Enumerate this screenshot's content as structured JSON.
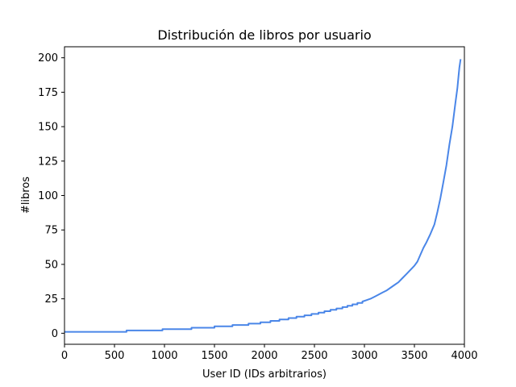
{
  "chart_data": {
    "type": "line",
    "title": "Distribución de libros por usuario",
    "xlabel": "User ID (IDs arbitrarios)",
    "ylabel": "#libros",
    "xlim": [
      0,
      4000
    ],
    "ylim": [
      -8,
      208
    ],
    "xticks": [
      0,
      500,
      1000,
      1500,
      2000,
      2500,
      3000,
      3500,
      4000
    ],
    "yticks": [
      0,
      25,
      50,
      75,
      100,
      125,
      150,
      175,
      200
    ],
    "grid": false,
    "line_color": "#4a86e8",
    "series": [
      {
        "x": [
          0,
          620,
          620,
          980,
          980,
          1270,
          1270,
          1500,
          1500,
          1680,
          1680,
          1840,
          1840,
          1960,
          1960,
          2060,
          2060,
          2150,
          2150,
          2240,
          2240,
          2320,
          2320,
          2400,
          2400,
          2470,
          2470,
          2540,
          2540,
          2600,
          2600,
          2660,
          2660,
          2720,
          2720,
          2780,
          2780,
          2830,
          2830,
          2880,
          2880,
          2930,
          2930,
          2980,
          2980,
          3020,
          3060,
          3100,
          3140,
          3180,
          3220,
          3260,
          3300,
          3340,
          3380,
          3420,
          3460,
          3500,
          3530,
          3560,
          3590,
          3620,
          3660,
          3700,
          3730,
          3760,
          3790,
          3820,
          3850,
          3880,
          3910,
          3930,
          3940,
          3950,
          3962
        ],
        "y": [
          1,
          1,
          2,
          2,
          3,
          3,
          4,
          4,
          5,
          5,
          6,
          6,
          7,
          7,
          8,
          8,
          9,
          9,
          10,
          10,
          11,
          11,
          12,
          12,
          13,
          13,
          14,
          14,
          15,
          15,
          16,
          16,
          17,
          17,
          18,
          18,
          19,
          19,
          20,
          20,
          21,
          21,
          22,
          22,
          23,
          24,
          25,
          26.5,
          28,
          29.5,
          31,
          33,
          35,
          37,
          40,
          43,
          46,
          49,
          52,
          57,
          62,
          66,
          72,
          79,
          88,
          98,
          110,
          122,
          137,
          150,
          167,
          178,
          186,
          193,
          199
        ]
      }
    ]
  }
}
